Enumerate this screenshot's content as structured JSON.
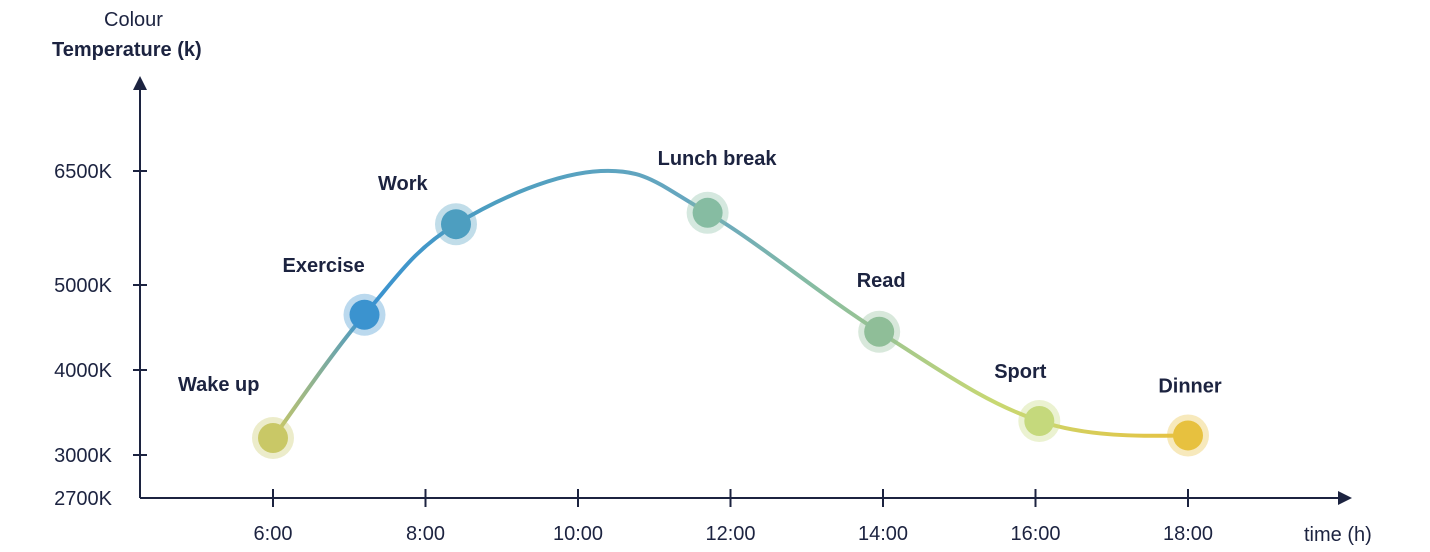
{
  "chart_data": {
    "type": "line",
    "ylabel_line1": "Colour",
    "ylabel_line2": "Temperature (k)",
    "xlabel": "time (h)",
    "x_ticks": [
      "6:00",
      "8:00",
      "10:00",
      "12:00",
      "14:00",
      "16:00",
      "18:00"
    ],
    "x_tick_values": [
      6,
      8,
      10,
      12,
      14,
      16,
      18
    ],
    "y_ticks": [
      "6500K",
      "5000K",
      "4000K",
      "3000K",
      "2700K"
    ],
    "y_tick_values": [
      6500,
      5000,
      4000,
      3000,
      2700
    ],
    "peak": {
      "x": 10.3,
      "y": 6500
    },
    "points": [
      {
        "label": "Wake up",
        "x": 6.0,
        "y": 3200,
        "color": "#c9c866",
        "label_pos": "left-above"
      },
      {
        "label": "Exercise",
        "x": 7.2,
        "y": 4650,
        "color": "#3b93cf",
        "label_pos": "above-left"
      },
      {
        "label": "Work",
        "x": 8.4,
        "y": 5800,
        "color": "#4d9ec0",
        "label_pos": "above-left"
      },
      {
        "label": "Lunch break",
        "x": 11.7,
        "y": 5950,
        "color": "#86bca2",
        "label_pos": "above-left"
      },
      {
        "label": "Read",
        "x": 13.95,
        "y": 4450,
        "color": "#8fbe98",
        "label_pos": "above"
      },
      {
        "label": "Sport",
        "x": 16.05,
        "y": 3400,
        "color": "#c5d97c",
        "label_pos": "above"
      },
      {
        "label": "Dinner",
        "x": 18.0,
        "y": 3230,
        "color": "#e7c13f",
        "label_pos": "above"
      }
    ]
  }
}
